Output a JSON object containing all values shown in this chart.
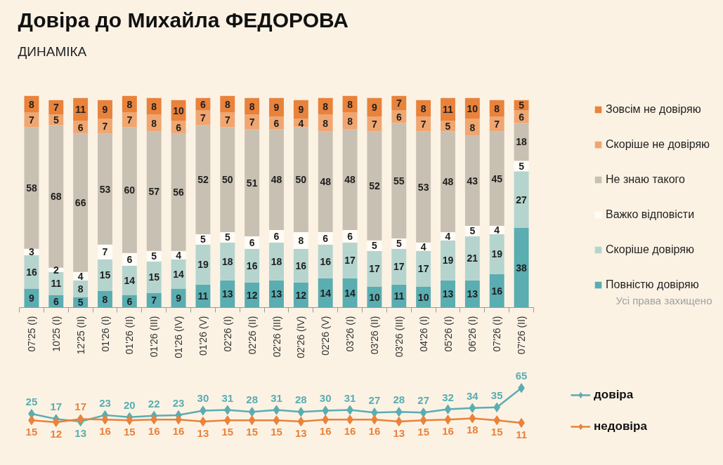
{
  "chart_data": [
    {
      "type": "bar",
      "title": "Довіра до Михайла ФЕДОРОВА",
      "subtitle": "ДИНАМІКА",
      "categories": [
        "07'25 (I)",
        "10'25 (I)",
        "12'25 (II)",
        "01'26 (I)",
        "01'26 (II)",
        "01'26 (III)",
        "01'26 (IV)",
        "01'26 (V)",
        "02'26 (I)",
        "02'26 (II)",
        "02'26 (III)",
        "02'26 (IV)",
        "02'26 (V)",
        "03'26 (I)",
        "03'26 (II)",
        "03'26 (III)",
        "04'26 (I)",
        "05'26 (I)",
        "06'26 (I)",
        "07'26 (I)",
        "07'26 (II)"
      ],
      "series": [
        {
          "name": "Повністю довіряю",
          "color": "#5aadb1",
          "values": [
            9,
            6,
            5,
            8,
            6,
            7,
            9,
            11,
            13,
            12,
            13,
            12,
            14,
            14,
            10,
            11,
            10,
            13,
            13,
            16,
            38
          ]
        },
        {
          "name": "Скоріше довіряю",
          "color": "#b5d4ce",
          "values": [
            16,
            11,
            8,
            15,
            14,
            15,
            14,
            19,
            18,
            16,
            18,
            16,
            16,
            17,
            17,
            17,
            17,
            19,
            21,
            19,
            27
          ]
        },
        {
          "name": "Важко відповісти",
          "color": "#fffcf7",
          "values": [
            3,
            2,
            4,
            7,
            6,
            5,
            4,
            5,
            5,
            6,
            6,
            8,
            6,
            6,
            5,
            5,
            4,
            4,
            5,
            4,
            5
          ]
        },
        {
          "name": "Не знаю такого",
          "color": "#c8c0b2",
          "values": [
            58,
            68,
            66,
            53,
            60,
            57,
            56,
            52,
            50,
            51,
            48,
            50,
            48,
            48,
            52,
            55,
            53,
            48,
            43,
            45,
            18
          ]
        },
        {
          "name": "Скоріше не довіряю",
          "color": "#f0a671",
          "values": [
            7,
            5,
            6,
            7,
            7,
            8,
            6,
            7,
            7,
            7,
            6,
            4,
            8,
            8,
            7,
            6,
            7,
            5,
            8,
            7,
            6
          ]
        },
        {
          "name": "Зовсім не довіряю",
          "color": "#e9823b",
          "values": [
            8,
            7,
            11,
            9,
            8,
            8,
            10,
            6,
            8,
            8,
            9,
            9,
            8,
            8,
            9,
            7,
            8,
            11,
            10,
            8,
            5
          ]
        }
      ],
      "stacked": true,
      "data_labels": true,
      "legend": "right",
      "tick_labels": "x",
      "annotations": [
        "Усі права захищено"
      ]
    },
    {
      "type": "line",
      "categories": [
        null,
        null,
        null,
        null,
        null,
        null,
        null,
        null,
        null,
        null,
        null,
        null,
        null,
        null,
        null,
        null,
        null,
        null,
        null,
        null,
        null
      ],
      "series": [
        {
          "name": "довіра",
          "color": "#5aadb1",
          "values": [
            25,
            17,
            13,
            23,
            20,
            22,
            23,
            30,
            31,
            28,
            31,
            28,
            30,
            31,
            27,
            28,
            27,
            32,
            34,
            35,
            65
          ]
        },
        {
          "name": "недовіра",
          "color": "#e9823b",
          "values": [
            15,
            12,
            17,
            16,
            15,
            16,
            16,
            13,
            15,
            15,
            15,
            13,
            16,
            16,
            16,
            13,
            15,
            16,
            18,
            15,
            11
          ]
        }
      ],
      "marker": "diamond",
      "line_style": "solid",
      "data_labels": true,
      "legend": "right",
      "tick_labels": false
    }
  ]
}
